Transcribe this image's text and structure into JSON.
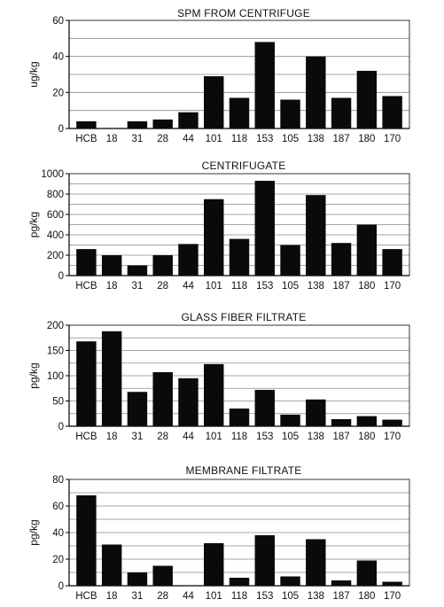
{
  "chart_data": [
    {
      "type": "bar",
      "title": "SPM FROM CENTRIFUGE",
      "ylabel": "ug/kg",
      "xlabel": "",
      "ylim": [
        0,
        60
      ],
      "yticks": [
        0,
        20,
        40,
        60
      ],
      "grid": true,
      "categories": [
        "HCB",
        "18",
        "31",
        "28",
        "44",
        "101",
        "118",
        "153",
        "105",
        "138",
        "187",
        "180",
        "170"
      ],
      "values": [
        4,
        0,
        4,
        5,
        9,
        29,
        17,
        48,
        16,
        40,
        17,
        32,
        18
      ],
      "bar_color": "#0a0a0a"
    },
    {
      "type": "bar",
      "title": "CENTRIFUGATE",
      "ylabel": "pg/kg",
      "xlabel": "",
      "ylim": [
        0,
        1000
      ],
      "yticks": [
        0,
        200,
        400,
        600,
        800,
        1000
      ],
      "grid": true,
      "categories": [
        "HCB",
        "18",
        "31",
        "28",
        "44",
        "101",
        "118",
        "153",
        "105",
        "138",
        "187",
        "180",
        "170"
      ],
      "values": [
        260,
        200,
        100,
        200,
        310,
        750,
        360,
        930,
        300,
        790,
        320,
        500,
        260
      ],
      "bar_color": "#0a0a0a"
    },
    {
      "type": "bar",
      "title": "GLASS FIBER FILTRATE",
      "ylabel": "pg/kg",
      "xlabel": "",
      "ylim": [
        0,
        200
      ],
      "yticks": [
        0,
        50,
        100,
        150,
        200
      ],
      "grid": true,
      "categories": [
        "HCB",
        "18",
        "31",
        "28",
        "44",
        "101",
        "118",
        "153",
        "105",
        "138",
        "187",
        "180",
        "170"
      ],
      "values": [
        168,
        188,
        68,
        107,
        95,
        123,
        35,
        72,
        23,
        53,
        14,
        20,
        13
      ],
      "bar_color": "#0a0a0a"
    },
    {
      "type": "bar",
      "title": "MEMBRANE FILTRATE",
      "ylabel": "pg/kg",
      "xlabel": "",
      "ylim": [
        0,
        80
      ],
      "yticks": [
        0,
        20,
        40,
        60,
        80
      ],
      "grid": true,
      "categories": [
        "HCB",
        "18",
        "31",
        "28",
        "44",
        "101",
        "118",
        "153",
        "105",
        "138",
        "187",
        "180",
        "170"
      ],
      "values": [
        68,
        31,
        10,
        15,
        0,
        32,
        6,
        38,
        7,
        35,
        4,
        19,
        3
      ],
      "bar_color": "#0a0a0a"
    }
  ]
}
